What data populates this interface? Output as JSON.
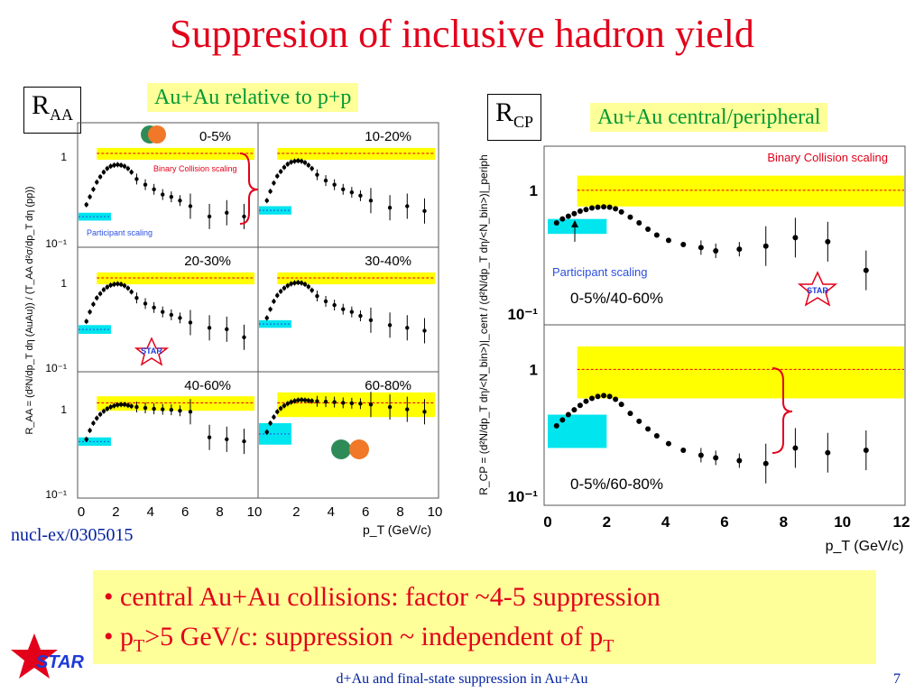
{
  "title": "Suppresion of inclusive hadron yield",
  "left_panel": {
    "box_main": "R",
    "box_sub": "AA",
    "label": "Au+Au relative to p+p",
    "reference": "nucl-ex/0305015"
  },
  "right_panel": {
    "box_main": "R",
    "box_sub": "CP",
    "label": "Au+Au central/peripheral"
  },
  "bullets": [
    {
      "text": "• central Au+Au collisions: factor ~4-5 suppression"
    },
    {
      "pre": "• p",
      "sub": "T",
      "mid": ">5 GeV/c: suppression ~ independent of p",
      "sub2": "T"
    }
  ],
  "footer": "d+Au and final-state suppression in Au+Au",
  "page_number": "7",
  "logo_text": "STAR",
  "colors": {
    "title": "#e2001a",
    "band_yellow": "#ffff00",
    "band_cyan": "#00e5ee",
    "binary_line": "#e2001a",
    "participant_text": "#2b4fe0",
    "bullet_text": "#e2001a",
    "label_green": "#009933",
    "footer_text": "#00209f"
  },
  "chart_data": [
    {
      "type": "scatter",
      "name": "R_AA panels",
      "ylabel": "R_AA = (d²N/dp_T dη (AuAu)) / (T_AA d²σ/dp_T dη (pp))",
      "xlabel": "p_T (GeV/c)",
      "x_ticks_left": [
        "0",
        "2",
        "4",
        "6",
        "8",
        "10"
      ],
      "x_ticks_right": [
        "0",
        "2",
        "4",
        "6",
        "8",
        "10"
      ],
      "y_scale": "log",
      "y_tick_labels": [
        "1",
        "10⁻¹"
      ],
      "annotations": [
        "Binary Collision scaling",
        "Participant scaling"
      ],
      "xlim": [
        0,
        10
      ],
      "ylim": [
        0.1,
        2
      ],
      "panels": [
        {
          "label": "0-5%",
          "x": [
            0.3,
            0.5,
            0.7,
            0.9,
            1.1,
            1.3,
            1.5,
            1.7,
            1.9,
            2.1,
            2.3,
            2.5,
            2.7,
            2.9,
            3.2,
            3.7,
            4.2,
            4.7,
            5.2,
            5.7,
            6.3,
            7.4,
            8.4,
            9.4
          ],
          "y": [
            0.27,
            0.33,
            0.4,
            0.48,
            0.55,
            0.62,
            0.68,
            0.72,
            0.74,
            0.75,
            0.74,
            0.72,
            0.68,
            0.62,
            0.52,
            0.45,
            0.4,
            0.35,
            0.33,
            0.3,
            0.26,
            0.2,
            0.22,
            0.2
          ],
          "binary_band": [
            0.85,
            1.15
          ],
          "participant_band": [
            0.18,
            0.22
          ]
        },
        {
          "label": "10-20%",
          "x": [
            0.3,
            0.5,
            0.7,
            0.9,
            1.1,
            1.3,
            1.5,
            1.7,
            1.9,
            2.1,
            2.3,
            2.5,
            2.7,
            2.9,
            3.2,
            3.7,
            4.2,
            4.7,
            5.2,
            5.7,
            6.3,
            7.4,
            8.4,
            9.4
          ],
          "y": [
            0.3,
            0.38,
            0.47,
            0.56,
            0.63,
            0.7,
            0.76,
            0.8,
            0.82,
            0.83,
            0.82,
            0.79,
            0.74,
            0.68,
            0.58,
            0.5,
            0.45,
            0.4,
            0.37,
            0.34,
            0.3,
            0.25,
            0.26,
            0.23
          ],
          "binary_band": [
            0.85,
            1.15
          ],
          "participant_band": [
            0.21,
            0.26
          ]
        },
        {
          "label": "20-30%",
          "x": [
            0.3,
            0.5,
            0.7,
            0.9,
            1.1,
            1.3,
            1.5,
            1.7,
            1.9,
            2.1,
            2.3,
            2.5,
            2.7,
            2.9,
            3.2,
            3.7,
            4.2,
            4.7,
            5.2,
            5.7,
            6.3,
            7.4,
            8.4,
            9.4
          ],
          "y": [
            0.33,
            0.42,
            0.51,
            0.6,
            0.67,
            0.74,
            0.79,
            0.83,
            0.85,
            0.86,
            0.85,
            0.82,
            0.77,
            0.7,
            0.6,
            0.52,
            0.47,
            0.42,
            0.39,
            0.36,
            0.32,
            0.28,
            0.27,
            0.22
          ],
          "binary_band": [
            0.85,
            1.15
          ],
          "participant_band": [
            0.24,
            0.3
          ]
        },
        {
          "label": "30-40%",
          "x": [
            0.3,
            0.5,
            0.7,
            0.9,
            1.1,
            1.3,
            1.5,
            1.7,
            1.9,
            2.1,
            2.3,
            2.5,
            2.7,
            2.9,
            3.2,
            3.7,
            4.2,
            4.7,
            5.2,
            5.7,
            6.3,
            7.4,
            8.4,
            9.4
          ],
          "y": [
            0.36,
            0.45,
            0.55,
            0.64,
            0.71,
            0.77,
            0.82,
            0.86,
            0.88,
            0.89,
            0.88,
            0.85,
            0.8,
            0.73,
            0.63,
            0.55,
            0.5,
            0.45,
            0.42,
            0.38,
            0.34,
            0.3,
            0.28,
            0.26
          ],
          "binary_band": [
            0.85,
            1.15
          ],
          "participant_band": [
            0.28,
            0.34
          ]
        },
        {
          "label": "40-60%",
          "x": [
            0.3,
            0.5,
            0.7,
            0.9,
            1.1,
            1.3,
            1.5,
            1.7,
            1.9,
            2.1,
            2.3,
            2.5,
            2.7,
            2.9,
            3.2,
            3.7,
            4.2,
            4.7,
            5.2,
            5.7,
            6.3,
            7.4,
            8.4,
            9.4
          ],
          "y": [
            0.4,
            0.5,
            0.6,
            0.68,
            0.75,
            0.81,
            0.86,
            0.9,
            0.93,
            0.95,
            0.96,
            0.96,
            0.94,
            0.92,
            0.9,
            0.88,
            0.86,
            0.85,
            0.84,
            0.82,
            0.8,
            0.42,
            0.4,
            0.38
          ],
          "binary_band": [
            0.82,
            1.18
          ],
          "participant_band": [
            0.34,
            0.42
          ]
        },
        {
          "label": "60-80%",
          "x": [
            0.3,
            0.5,
            0.7,
            0.9,
            1.1,
            1.3,
            1.5,
            1.7,
            1.9,
            2.1,
            2.3,
            2.5,
            2.7,
            2.9,
            3.2,
            3.7,
            4.2,
            4.7,
            5.2,
            5.7,
            6.3,
            7.4,
            8.4,
            9.4
          ],
          "y": [
            0.48,
            0.6,
            0.7,
            0.8,
            0.87,
            0.93,
            0.98,
            1.02,
            1.05,
            1.07,
            1.08,
            1.07,
            1.06,
            1.05,
            1.04,
            1.03,
            1.02,
            1.0,
            0.99,
            0.98,
            0.96,
            0.9,
            0.85,
            0.8
          ],
          "binary_band": [
            0.7,
            1.3
          ],
          "participant_band": [
            0.35,
            0.6
          ]
        }
      ]
    },
    {
      "type": "scatter",
      "name": "R_CP panels",
      "ylabel": "R_CP = (d²N/dp_T dη/<N_bin>)|_cent / (d²N/dp_T dη/<N_bin>)|_periph",
      "xlabel": "p_T (GeV/c)",
      "x_ticks": [
        "0",
        "2",
        "4",
        "6",
        "8",
        "10",
        "12"
      ],
      "y_scale": "log",
      "y_tick_labels": [
        "1",
        "10⁻¹"
      ],
      "annotations": [
        "Binary Collision scaling",
        "Participant scaling"
      ],
      "xlim": [
        0,
        12
      ],
      "ylim": [
        0.1,
        2
      ],
      "panels": [
        {
          "label": "0-5%/40-60%",
          "x": [
            0.3,
            0.5,
            0.7,
            0.9,
            1.1,
            1.3,
            1.5,
            1.7,
            1.9,
            2.1,
            2.3,
            2.5,
            2.8,
            3.1,
            3.4,
            3.7,
            4.1,
            4.6,
            5.2,
            5.7,
            6.5,
            7.4,
            8.4,
            9.5,
            10.8
          ],
          "y": [
            0.56,
            0.6,
            0.63,
            0.66,
            0.69,
            0.71,
            0.73,
            0.74,
            0.745,
            0.74,
            0.72,
            0.68,
            0.62,
            0.56,
            0.5,
            0.45,
            0.41,
            0.38,
            0.36,
            0.34,
            0.35,
            0.37,
            0.43,
            0.4,
            0.24
          ],
          "binary_band": [
            0.75,
            1.3
          ],
          "participant_band": [
            0.46,
            0.6
          ]
        },
        {
          "label": "0-5%/60-80%",
          "x": [
            0.3,
            0.5,
            0.7,
            0.9,
            1.1,
            1.3,
            1.5,
            1.7,
            1.9,
            2.1,
            2.3,
            2.5,
            2.8,
            3.1,
            3.4,
            3.7,
            4.1,
            4.6,
            5.2,
            5.7,
            6.5,
            7.4,
            8.4,
            9.5,
            10.8
          ],
          "y": [
            0.37,
            0.41,
            0.45,
            0.49,
            0.53,
            0.57,
            0.6,
            0.62,
            0.63,
            0.62,
            0.59,
            0.54,
            0.46,
            0.4,
            0.35,
            0.31,
            0.27,
            0.24,
            0.22,
            0.21,
            0.2,
            0.19,
            0.25,
            0.23,
            0.24
          ],
          "binary_band": [
            0.6,
            1.5
          ],
          "participant_band": [
            0.25,
            0.45
          ]
        }
      ]
    }
  ]
}
